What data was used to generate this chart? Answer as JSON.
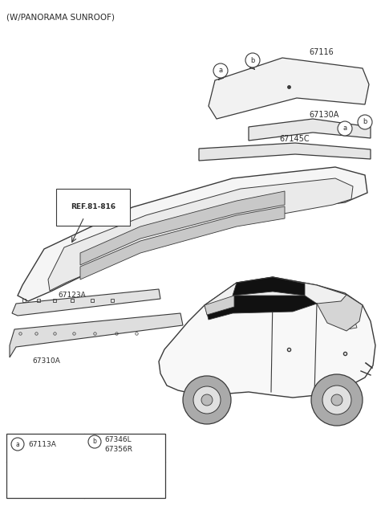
{
  "title": "(W/PANORAMA SUNROOF)",
  "bg_color": "#ffffff",
  "lc": "#3a3a3a",
  "tc": "#2a2a2a",
  "parts": {
    "67116": "67116",
    "67130A": "67130A",
    "67145C": "67145C",
    "REF81816": "REF.81-816",
    "67123A": "67123A",
    "67310A": "67310A",
    "67113A": "67113A",
    "67346L": "67346L",
    "67356R": "67356R"
  }
}
